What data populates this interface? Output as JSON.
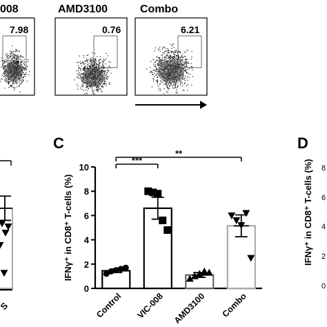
{
  "flow_panels": [
    {
      "title": "008",
      "value": "7.98"
    },
    {
      "title": "AMD3100",
      "value": "0.76"
    },
    {
      "title": "Combo",
      "value": "6.21"
    }
  ],
  "panel_letters": {
    "c": "C",
    "d": "D"
  },
  "left_cut_xtick": "S",
  "right_cut": {
    "ylabel": "IFNγ⁺ in CD8⁺ T-cells (%)",
    "ticks": [
      "8",
      "6",
      "4",
      "2",
      "0"
    ]
  },
  "chart_data": {
    "type": "bar",
    "title": "",
    "xlabel": "",
    "ylabel": "IFNγ⁺ in CD8⁺ T-cells (%)",
    "ylim": [
      0,
      10
    ],
    "yticks": [
      0,
      2,
      4,
      6,
      8,
      10
    ],
    "categories": [
      "Control",
      "VIC-008",
      "AMD3100",
      "Combo"
    ],
    "values": [
      1.45,
      6.6,
      1.1,
      5.15
    ],
    "sem": [
      0.15,
      0.9,
      0.2,
      0.9
    ],
    "points": [
      [
        1.2,
        1.4,
        1.5,
        1.6,
        1.7
      ],
      [
        8.0,
        7.9,
        7.8,
        5.6,
        4.8
      ],
      [
        0.8,
        1.0,
        1.2,
        1.4,
        1.3
      ],
      [
        6.0,
        5.6,
        5.2,
        6.2,
        2.5
      ]
    ],
    "markers": [
      "circle",
      "square",
      "triangle-up",
      "triangle-down"
    ],
    "colors": [
      "#000000",
      "#000000",
      "#666666",
      "#aaaaaa"
    ],
    "significance": [
      {
        "from": "Control",
        "to": "VIC-008",
        "label": "***"
      },
      {
        "from": "Control",
        "to": "Combo",
        "label": "**"
      }
    ]
  },
  "left_cut_points": [
    4.2,
    4.0,
    3.6,
    2.8,
    1.0
  ],
  "left_cut_bar": {
    "value": 6.6,
    "sem": 1.0
  }
}
